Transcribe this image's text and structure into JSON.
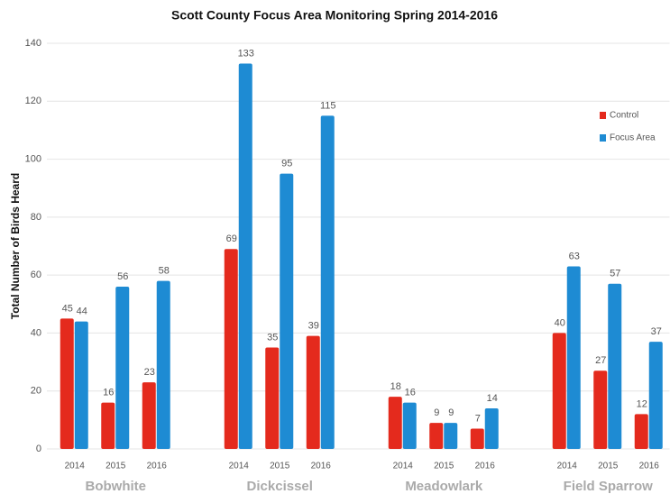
{
  "chart_data": {
    "type": "bar",
    "title": "Scott County Focus Area Monitoring Spring 2014-2016",
    "y_label": "Total Number of Birds Heard",
    "groups": [
      "Bobwhite",
      "Dickcissel",
      "Meadowlark",
      "Field Sparrow"
    ],
    "categories": [
      "2014",
      "2015",
      "2016",
      "2014",
      "2015",
      "2016",
      "2014",
      "2015",
      "2016",
      "2014",
      "2015",
      "2016"
    ],
    "series": [
      {
        "name": "Control",
        "color": "#e42a1d",
        "values": [
          45,
          16,
          23,
          69,
          35,
          39,
          18,
          9,
          7,
          40,
          27,
          12
        ]
      },
      {
        "name": "Focus Area",
        "color": "#1e8bd3",
        "values": [
          44,
          56,
          58,
          133,
          95,
          115,
          16,
          9,
          14,
          63,
          57,
          37
        ]
      }
    ],
    "ylim": [
      0,
      140
    ],
    "yticks": [
      0,
      20,
      40,
      60,
      80,
      100,
      120,
      140
    ],
    "grid": true,
    "legend": "top-right"
  }
}
